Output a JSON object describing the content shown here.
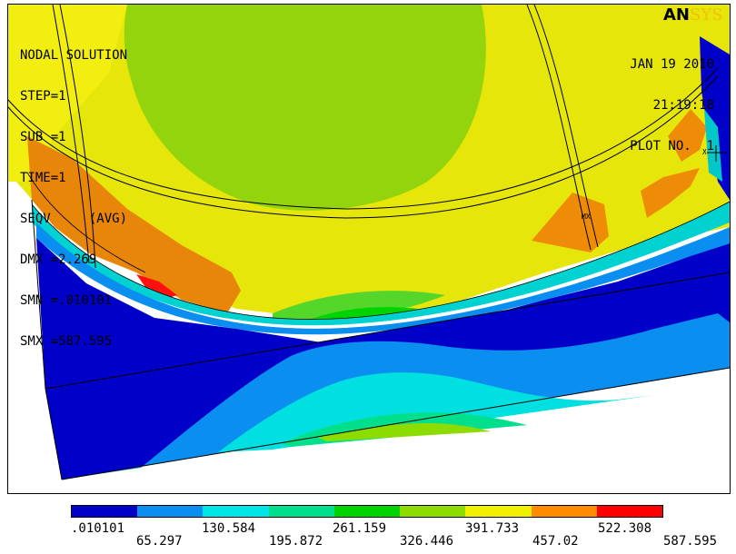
{
  "plot": {
    "lines": [
      "NODAL SOLUTION",
      "STEP=1",
      "SUB =1",
      "TIME=1",
      "SEQV     (AVG)",
      "DMX =2.269",
      "SMN =.010101",
      "SMX =587.595"
    ],
    "date": "JAN 19 2010",
    "time": "21:19:18",
    "plot_no": "PLOT NO.  1",
    "logo_an": "AN",
    "logo_sys": "SYS",
    "mx_label": "MX"
  },
  "legend": {
    "colors": [
      "#0000c8",
      "#0a8ef0",
      "#00e6e6",
      "#00e08c",
      "#00d400",
      "#8cdc00",
      "#f0f000",
      "#ff8c00",
      "#ff0000"
    ],
    "top_ticks": [
      ".010101",
      "130.584",
      "261.159",
      "391.733",
      "522.308"
    ],
    "bottom_ticks": [
      "65.297",
      "195.872",
      "326.446",
      "457.02",
      "587.595"
    ]
  }
}
